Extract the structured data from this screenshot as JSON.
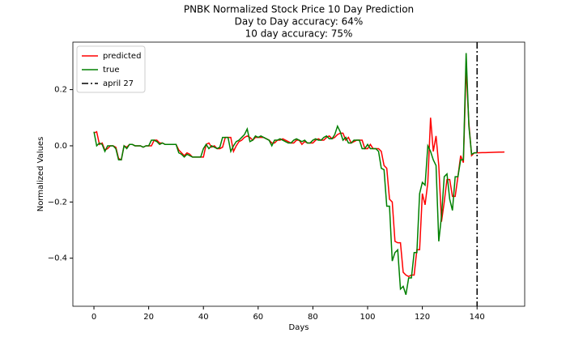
{
  "chart_data": {
    "type": "line",
    "title": "PNBK Normalized Stock Price 10 Day Prediction",
    "subtitle": [
      "Day to Day accuracy: 64%",
      "10 day accuracy: 75%"
    ],
    "x_label": "Days",
    "y_label": "Normalized Values",
    "x": [
      0,
      1,
      2,
      3,
      4,
      5,
      6,
      7,
      8,
      9,
      10,
      11,
      12,
      13,
      14,
      15,
      16,
      17,
      18,
      19,
      20,
      21,
      22,
      23,
      24,
      25,
      26,
      27,
      28,
      29,
      30,
      31,
      32,
      33,
      34,
      35,
      36,
      37,
      38,
      39,
      40,
      41,
      42,
      43,
      44,
      45,
      46,
      47,
      48,
      49,
      50,
      51,
      52,
      53,
      54,
      55,
      56,
      57,
      58,
      59,
      60,
      61,
      62,
      63,
      64,
      65,
      66,
      67,
      68,
      69,
      70,
      71,
      72,
      73,
      74,
      75,
      76,
      77,
      78,
      79,
      80,
      81,
      82,
      83,
      84,
      85,
      86,
      87,
      88,
      89,
      90,
      91,
      92,
      93,
      94,
      95,
      96,
      97,
      98,
      99,
      100,
      101,
      102,
      103,
      104,
      105,
      106,
      107,
      108,
      109,
      110,
      111,
      112,
      113,
      114,
      115,
      116,
      117,
      118,
      119,
      120,
      121,
      122,
      123,
      124,
      125,
      126,
      127,
      128,
      129,
      130,
      131,
      132,
      133,
      134,
      135,
      136,
      137,
      138,
      139,
      140,
      141,
      142,
      143,
      144,
      145,
      146,
      147,
      148,
      149,
      150
    ],
    "series": [
      {
        "name": "predicted",
        "color": "#ff0000",
        "values": [
          0.045,
          0.05,
          0.005,
          0.01,
          -0.015,
          -0.01,
          0.0,
          0.0,
          -0.005,
          -0.045,
          -0.05,
          0.0,
          -0.005,
          0.005,
          0.005,
          0.0,
          0.0,
          0.0,
          -0.005,
          0.0,
          0.0,
          0.0,
          0.02,
          0.02,
          0.01,
          0.01,
          0.005,
          0.005,
          0.005,
          0.005,
          0.005,
          -0.015,
          -0.025,
          -0.035,
          -0.025,
          -0.03,
          -0.04,
          -0.04,
          -0.04,
          -0.04,
          -0.04,
          0.005,
          0.01,
          -0.005,
          0.0,
          -0.01,
          -0.01,
          -0.005,
          0.03,
          0.03,
          0.03,
          -0.02,
          0.0,
          0.015,
          0.02,
          0.03,
          0.035,
          0.03,
          0.02,
          0.03,
          0.03,
          0.03,
          0.03,
          0.025,
          0.02,
          0.01,
          0.01,
          0.02,
          0.02,
          0.025,
          0.02,
          0.015,
          0.01,
          0.01,
          0.02,
          0.02,
          0.005,
          0.015,
          0.01,
          0.01,
          0.01,
          0.02,
          0.025,
          0.02,
          0.02,
          0.03,
          0.035,
          0.025,
          0.03,
          0.04,
          0.045,
          0.045,
          0.02,
          0.03,
          0.01,
          0.015,
          0.02,
          0.02,
          0.02,
          -0.01,
          -0.01,
          0.005,
          -0.01,
          -0.01,
          -0.01,
          -0.02,
          -0.07,
          -0.08,
          -0.19,
          -0.2,
          -0.34,
          -0.345,
          -0.345,
          -0.45,
          -0.46,
          -0.465,
          -0.46,
          -0.46,
          -0.37,
          -0.37,
          -0.17,
          -0.21,
          -0.13,
          0.1,
          -0.02,
          0.035,
          -0.07,
          -0.27,
          -0.2,
          -0.12,
          -0.12,
          -0.18,
          -0.18,
          -0.11,
          -0.035,
          -0.06,
          0.28,
          0.08,
          -0.035,
          -0.025,
          -0.025,
          -0.0247,
          -0.0244,
          -0.0241,
          -0.0238,
          -0.0235,
          -0.0232,
          -0.0229,
          -0.0226,
          -0.0223,
          -0.022
        ]
      },
      {
        "name": "true",
        "color": "#008000",
        "values": [
          0.05,
          0.0,
          0.01,
          0.005,
          -0.02,
          0.0,
          0.0,
          0.0,
          -0.01,
          -0.05,
          -0.05,
          0.0,
          -0.01,
          0.005,
          0.005,
          0.0,
          0.0,
          0.0,
          -0.005,
          0.0,
          0.0,
          0.02,
          0.02,
          0.015,
          0.005,
          0.01,
          0.005,
          0.005,
          0.005,
          0.005,
          0.005,
          -0.025,
          -0.03,
          -0.04,
          -0.03,
          -0.035,
          -0.04,
          -0.04,
          -0.04,
          -0.04,
          -0.01,
          0.005,
          -0.01,
          0.0,
          -0.005,
          -0.01,
          -0.005,
          0.03,
          0.03,
          0.03,
          -0.02,
          0.0,
          0.015,
          0.02,
          0.03,
          0.04,
          0.06,
          0.015,
          0.02,
          0.035,
          0.03,
          0.035,
          0.03,
          0.025,
          0.02,
          0.0,
          0.02,
          0.02,
          0.025,
          0.02,
          0.015,
          0.01,
          0.01,
          0.02,
          0.025,
          0.02,
          0.015,
          0.02,
          0.01,
          0.01,
          0.02,
          0.025,
          0.02,
          0.02,
          0.03,
          0.035,
          0.025,
          0.025,
          0.04,
          0.07,
          0.05,
          0.02,
          0.03,
          0.01,
          0.01,
          0.02,
          0.02,
          0.02,
          -0.01,
          -0.01,
          0.005,
          -0.01,
          -0.01,
          -0.01,
          -0.02,
          -0.08,
          -0.085,
          -0.215,
          -0.215,
          -0.41,
          -0.38,
          -0.37,
          -0.51,
          -0.5,
          -0.53,
          -0.47,
          -0.47,
          -0.38,
          -0.38,
          -0.17,
          -0.13,
          -0.14,
          0.0,
          -0.02,
          -0.05,
          -0.07,
          -0.34,
          -0.25,
          -0.11,
          -0.1,
          -0.19,
          -0.23,
          -0.11,
          -0.11,
          -0.05,
          -0.05,
          0.33,
          0.07,
          -0.03,
          -0.025,
          -0.025,
          null,
          null,
          null,
          null,
          null,
          null,
          null,
          null,
          null,
          null
        ]
      }
    ],
    "vline": {
      "name": "april 27",
      "x": 140,
      "color": "#000000",
      "style": "dashdot"
    },
    "xlim": [
      -7.7,
      157.4
    ],
    "xticks": [
      0,
      20,
      40,
      60,
      80,
      100,
      120,
      140
    ],
    "ylim": [
      -0.571,
      0.369
    ],
    "yticks": [
      {
        "value": -0.4,
        "label": "−0.4"
      },
      {
        "value": -0.2,
        "label": "−0.2"
      },
      {
        "value": 0,
        "label": "0.0"
      },
      0.2
    ],
    "legend": "upper left",
    "grid": false
  }
}
